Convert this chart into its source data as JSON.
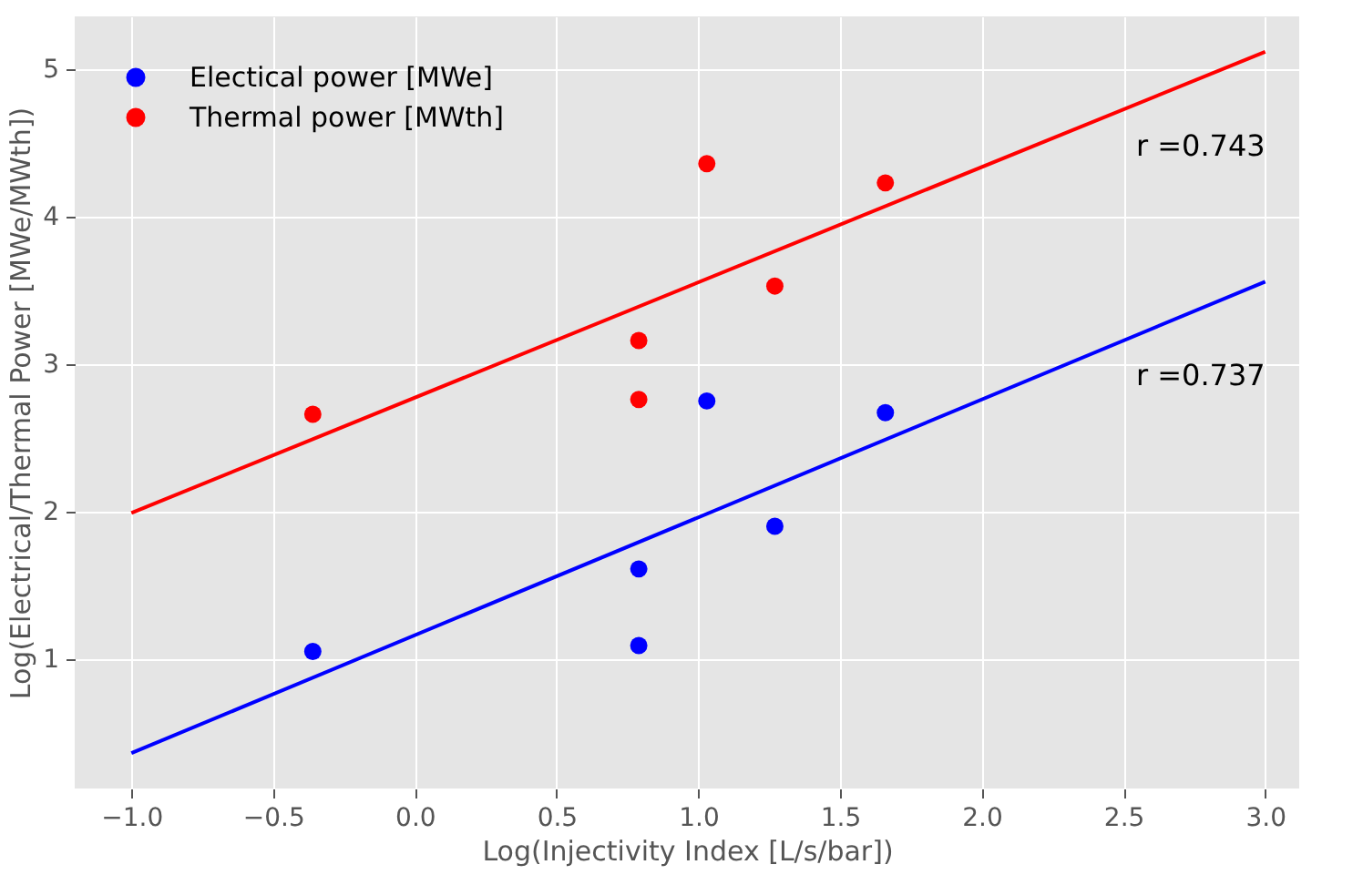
{
  "chart_data": {
    "type": "scatter",
    "xlabel": "Log(Injectivity Index [L/s/bar])",
    "ylabel": "Log(Electrical/Thermal Power [MWe/MWth])",
    "xlim": [
      -1.2,
      3.12
    ],
    "ylim": [
      0.12,
      5.36
    ],
    "xticks": [
      {
        "value": -1,
        "label": "−1.0"
      },
      {
        "value": -0.5,
        "label": "−0.5"
      },
      {
        "value": 0,
        "label": "0.0"
      },
      {
        "value": 0.5,
        "label": "0.5"
      },
      {
        "value": 1,
        "label": "1.0"
      },
      {
        "value": 1.5,
        "label": "1.5"
      },
      {
        "value": 2,
        "label": "2.0"
      },
      {
        "value": 2.5,
        "label": "2.5"
      },
      {
        "value": 3,
        "label": "3.0"
      }
    ],
    "yticks": [
      1,
      2,
      3,
      4,
      5
    ],
    "grid": true,
    "legend": "top left",
    "marker": "circle",
    "series": [
      {
        "name": "Electical power [MWe]",
        "color": "#0000ff",
        "x": [
          -0.36,
          0.79,
          0.79,
          1.03,
          1.27,
          1.66
        ],
        "values": [
          1.05,
          1.61,
          1.09,
          2.75,
          1.9,
          2.67
        ]
      },
      {
        "name": "Thermal power [MWth]",
        "color": "#ff0000",
        "x": [
          -0.36,
          0.79,
          0.79,
          1.03,
          1.27,
          1.66
        ],
        "values": [
          2.66,
          3.16,
          2.76,
          4.36,
          3.53,
          4.23
        ]
      },
      {
        "type": "line",
        "marker": "none",
        "color": "#0000ff",
        "x": [
          -1,
          3
        ],
        "values": [
          0.36,
          3.56
        ]
      },
      {
        "type": "line",
        "marker": "none",
        "color": "#ff0000",
        "x": [
          -1,
          3
        ],
        "values": [
          1.99,
          5.12
        ]
      }
    ],
    "annotations": [
      "r =0.743",
      "r =0.737"
    ]
  }
}
